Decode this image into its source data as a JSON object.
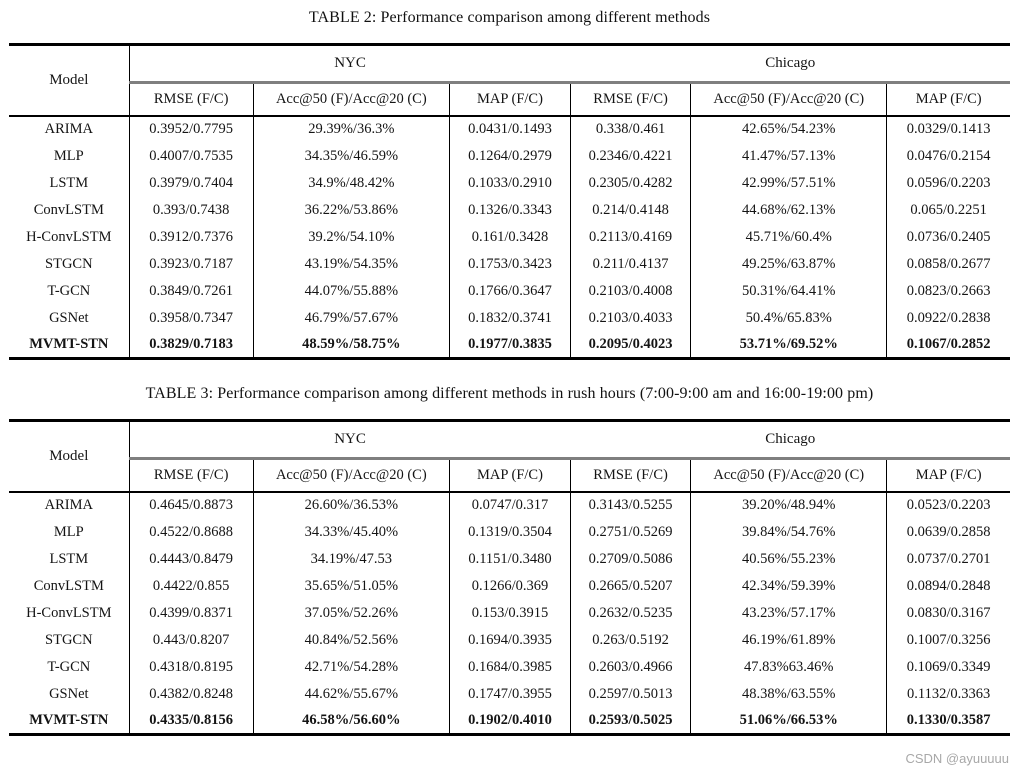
{
  "page": {
    "background": "#ffffff",
    "text_color": "#141414",
    "rule_color": "#000000",
    "city_rule_color": "#7f7f7f",
    "watermark": {
      "text": "CSDN @ayuuuuu",
      "color": "#a8a8a8"
    }
  },
  "tables": [
    {
      "title": "TABLE 2: Performance comparison among different methods",
      "model_header": "Model",
      "city_groups": [
        "NYC",
        "Chicago"
      ],
      "sub_headers": [
        "RMSE (F/C)",
        "Acc@50 (F)/Acc@20 (C)",
        "MAP (F/C)",
        "RMSE (F/C)",
        "Acc@50 (F)/Acc@20 (C)",
        "MAP (F/C)"
      ],
      "rows": [
        {
          "model": "ARIMA",
          "bold": false,
          "values": [
            "0.3952/0.7795",
            "29.39%/36.3%",
            "0.0431/0.1493",
            "0.338/0.461",
            "42.65%/54.23%",
            "0.0329/0.1413"
          ]
        },
        {
          "model": "MLP",
          "bold": false,
          "values": [
            "0.4007/0.7535",
            "34.35%/46.59%",
            "0.1264/0.2979",
            "0.2346/0.4221",
            "41.47%/57.13%",
            "0.0476/0.2154"
          ]
        },
        {
          "model": "LSTM",
          "bold": false,
          "values": [
            "0.3979/0.7404",
            "34.9%/48.42%",
            "0.1033/0.2910",
            "0.2305/0.4282",
            "42.99%/57.51%",
            "0.0596/0.2203"
          ]
        },
        {
          "model": "ConvLSTM",
          "bold": false,
          "values": [
            "0.393/0.7438",
            "36.22%/53.86%",
            "0.1326/0.3343",
            "0.214/0.4148",
            "44.68%/62.13%",
            "0.065/0.2251"
          ]
        },
        {
          "model": "H-ConvLSTM",
          "bold": false,
          "values": [
            "0.3912/0.7376",
            "39.2%/54.10%",
            "0.161/0.3428",
            "0.2113/0.4169",
            "45.71%/60.4%",
            "0.0736/0.2405"
          ]
        },
        {
          "model": "STGCN",
          "bold": false,
          "values": [
            "0.3923/0.7187",
            "43.19%/54.35%",
            "0.1753/0.3423",
            "0.211/0.4137",
            "49.25%/63.87%",
            "0.0858/0.2677"
          ]
        },
        {
          "model": "T-GCN",
          "bold": false,
          "values": [
            "0.3849/0.7261",
            "44.07%/55.88%",
            "0.1766/0.3647",
            "0.2103/0.4008",
            "50.31%/64.41%",
            "0.0823/0.2663"
          ]
        },
        {
          "model": "GSNet",
          "bold": false,
          "values": [
            "0.3958/0.7347",
            "46.79%/57.67%",
            "0.1832/0.3741",
            "0.2103/0.4033",
            "50.4%/65.83%",
            "0.0922/0.2838"
          ]
        },
        {
          "model": "MVMT-STN",
          "bold": true,
          "values": [
            "0.3829/0.7183",
            "48.59%/58.75%",
            "0.1977/0.3835",
            "0.2095/0.4023",
            "53.71%/69.52%",
            "0.1067/0.2852"
          ]
        }
      ]
    },
    {
      "title": "TABLE 3: Performance comparison among different methods in rush hours (7:00-9:00 am and 16:00-19:00 pm)",
      "model_header": "Model",
      "city_groups": [
        "NYC",
        "Chicago"
      ],
      "sub_headers": [
        "RMSE (F/C)",
        "Acc@50 (F)/Acc@20 (C)",
        "MAP (F/C)",
        "RMSE (F/C)",
        "Acc@50 (F)/Acc@20 (C)",
        "MAP (F/C)"
      ],
      "rows": [
        {
          "model": "ARIMA",
          "bold": false,
          "values": [
            "0.4645/0.8873",
            "26.60%/36.53%",
            "0.0747/0.317",
            "0.3143/0.5255",
            "39.20%/48.94%",
            "0.0523/0.2203"
          ]
        },
        {
          "model": "MLP",
          "bold": false,
          "values": [
            "0.4522/0.8688",
            "34.33%/45.40%",
            "0.1319/0.3504",
            "0.2751/0.5269",
            "39.84%/54.76%",
            "0.0639/0.2858"
          ]
        },
        {
          "model": "LSTM",
          "bold": false,
          "values": [
            "0.4443/0.8479",
            "34.19%/47.53",
            "0.1151/0.3480",
            "0.2709/0.5086",
            "40.56%/55.23%",
            "0.0737/0.2701"
          ]
        },
        {
          "model": "ConvLSTM",
          "bold": false,
          "values": [
            "0.4422/0.855",
            "35.65%/51.05%",
            "0.1266/0.369",
            "0.2665/0.5207",
            "42.34%/59.39%",
            "0.0894/0.2848"
          ]
        },
        {
          "model": "H-ConvLSTM",
          "bold": false,
          "values": [
            "0.4399/0.8371",
            "37.05%/52.26%",
            "0.153/0.3915",
            "0.2632/0.5235",
            "43.23%/57.17%",
            "0.0830/0.3167"
          ]
        },
        {
          "model": "STGCN",
          "bold": false,
          "values": [
            "0.443/0.8207",
            "40.84%/52.56%",
            "0.1694/0.3935",
            "0.263/0.5192",
            "46.19%/61.89%",
            "0.1007/0.3256"
          ]
        },
        {
          "model": "T-GCN",
          "bold": false,
          "values": [
            "0.4318/0.8195",
            "42.71%/54.28%",
            "0.1684/0.3985",
            "0.2603/0.4966",
            "47.83%63.46%",
            "0.1069/0.3349"
          ]
        },
        {
          "model": "GSNet",
          "bold": false,
          "values": [
            "0.4382/0.8248",
            "44.62%/55.67%",
            "0.1747/0.3955",
            "0.2597/0.5013",
            "48.38%/63.55%",
            "0.1132/0.3363"
          ]
        },
        {
          "model": "MVMT-STN",
          "bold": true,
          "values": [
            "0.4335/0.8156",
            "46.58%/56.60%",
            "0.1902/0.4010",
            "0.2593/0.5025",
            "51.06%/66.53%",
            "0.1330/0.3587"
          ]
        }
      ]
    }
  ]
}
